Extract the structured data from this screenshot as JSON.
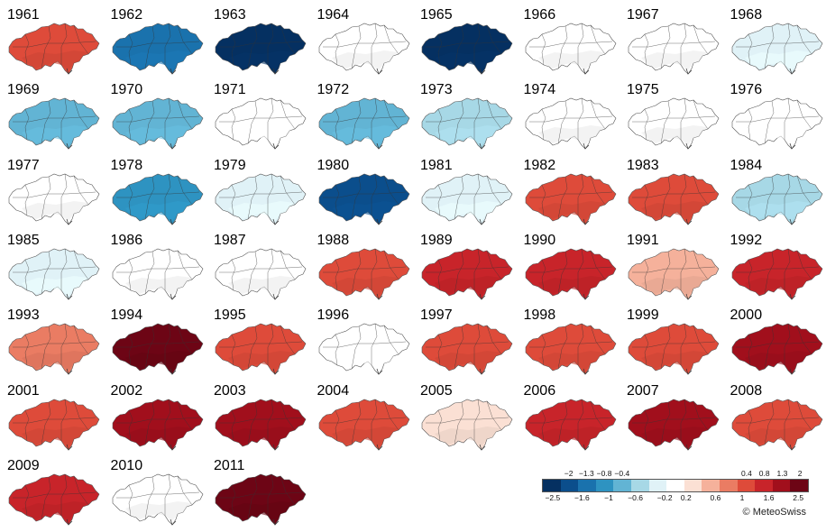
{
  "maps": [
    {
      "year": "1961",
      "value": 1.1
    },
    {
      "year": "1962",
      "value": -1.5
    },
    {
      "year": "1963",
      "value": -2.0
    },
    {
      "year": "1964",
      "value": 0.1
    },
    {
      "year": "1965",
      "value": -2.0
    },
    {
      "year": "1966",
      "value": 0.0
    },
    {
      "year": "1967",
      "value": 0.1
    },
    {
      "year": "1968",
      "value": -0.3
    },
    {
      "year": "1969",
      "value": -0.9
    },
    {
      "year": "1970",
      "value": -0.8
    },
    {
      "year": "1971",
      "value": -0.1
    },
    {
      "year": "1972",
      "value": -0.8
    },
    {
      "year": "1973",
      "value": -0.6
    },
    {
      "year": "1974",
      "value": 0.0
    },
    {
      "year": "1975",
      "value": 0.1
    },
    {
      "year": "1976",
      "value": -0.1
    },
    {
      "year": "1977",
      "value": 0.1
    },
    {
      "year": "1978",
      "value": -1.0
    },
    {
      "year": "1979",
      "value": -0.2
    },
    {
      "year": "1980",
      "value": -1.6
    },
    {
      "year": "1981",
      "value": -0.3
    },
    {
      "year": "1982",
      "value": 0.9
    },
    {
      "year": "1983",
      "value": 1.1
    },
    {
      "year": "1984",
      "value": -0.6
    },
    {
      "year": "1985",
      "value": -0.5
    },
    {
      "year": "1986",
      "value": 0.0
    },
    {
      "year": "1987",
      "value": 0.0
    },
    {
      "year": "1988",
      "value": 1.0
    },
    {
      "year": "1989",
      "value": 1.6
    },
    {
      "year": "1990",
      "value": 1.4
    },
    {
      "year": "1991",
      "value": 0.5
    },
    {
      "year": "1992",
      "value": 1.4
    },
    {
      "year": "1993",
      "value": 0.8
    },
    {
      "year": "1994",
      "value": 2.4
    },
    {
      "year": "1995",
      "value": 0.9
    },
    {
      "year": "1996",
      "value": -0.1
    },
    {
      "year": "1997",
      "value": 1.3
    },
    {
      "year": "1998",
      "value": 1.0
    },
    {
      "year": "1999",
      "value": 0.9
    },
    {
      "year": "2000",
      "value": 2.0
    },
    {
      "year": "2001",
      "value": 1.0
    },
    {
      "year": "2002",
      "value": 1.7
    },
    {
      "year": "2003",
      "value": 2.0
    },
    {
      "year": "2004",
      "value": 0.9
    },
    {
      "year": "2005",
      "value": 0.4
    },
    {
      "year": "2006",
      "value": 1.6
    },
    {
      "year": "2007",
      "value": 1.8
    },
    {
      "year": "2008",
      "value": 1.0
    },
    {
      "year": "2009",
      "value": 1.4
    },
    {
      "year": "2010",
      "value": 0.2
    },
    {
      "year": "2011",
      "value": 2.4
    }
  ],
  "legend": {
    "top_labels": [
      "−2",
      "−1.3",
      "−0.8",
      "−0.4",
      "0.4",
      "0.8",
      "1.3",
      "2"
    ],
    "bottom_labels": [
      "−2.5",
      "−1.6",
      "−1",
      "−0.6",
      "−0.2",
      "0.2",
      "0.6",
      "1",
      "1.6",
      "2.5"
    ],
    "colors": [
      "#053061",
      "#0b4e8c",
      "#1a72ad",
      "#2e93c1",
      "#62b4d4",
      "#a7d8e6",
      "#e0f2f7",
      "#ffffff",
      "#fbe0d4",
      "#f5b19b",
      "#ea7c63",
      "#de4b3a",
      "#c8242a",
      "#a10f1c",
      "#6d0515"
    ]
  },
  "copyright": "© MeteoSwiss"
}
